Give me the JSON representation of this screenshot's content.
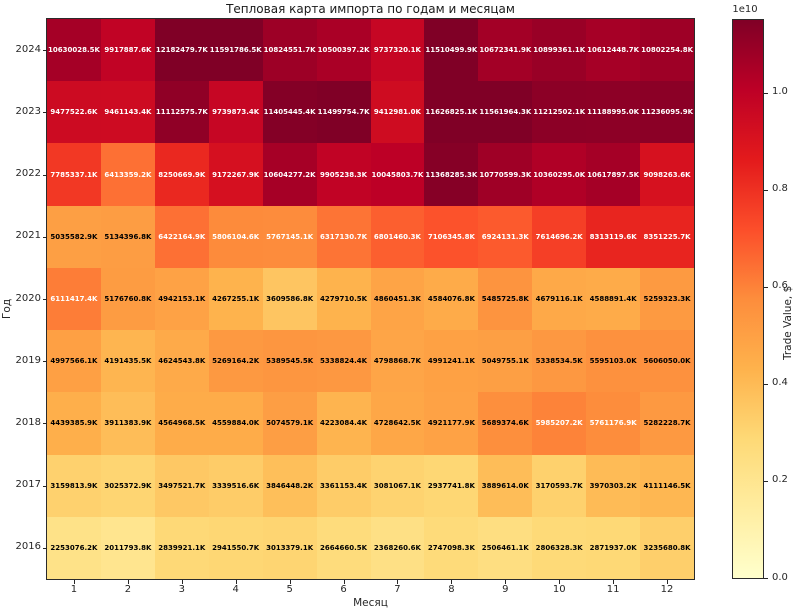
{
  "chart_data": {
    "type": "heatmap",
    "title": "Тепловая карта импорта по годам и месяцам",
    "xlabel": "Месяц",
    "ylabel": "Год",
    "columns": [
      "1",
      "2",
      "3",
      "4",
      "5",
      "6",
      "7",
      "8",
      "9",
      "10",
      "11",
      "12"
    ],
    "rows": [
      "2024",
      "2023",
      "2022",
      "2021",
      "2020",
      "2019",
      "2018",
      "2017",
      "2016"
    ],
    "values_unit": "K",
    "values": [
      [
        10630028.5,
        9917887.6,
        12182479.7,
        11591786.5,
        10824551.7,
        10500397.2,
        9737320.1,
        11510499.9,
        10672341.9,
        10899361.1,
        10612448.7,
        10802254.8
      ],
      [
        9477522.6,
        9461143.4,
        11112575.7,
        9739873.4,
        11405445.4,
        11499754.7,
        9412981.0,
        11626825.1,
        11561964.3,
        11212502.1,
        11188995.0,
        11236095.9
      ],
      [
        7785337.1,
        6413359.2,
        8250669.9,
        9172267.9,
        10604277.2,
        9905238.3,
        10045803.7,
        11368285.3,
        10770599.3,
        10360295.0,
        10617897.5,
        9098263.6
      ],
      [
        5035582.9,
        5134396.8,
        6422164.9,
        5806104.6,
        5767145.1,
        6317130.7,
        6801460.3,
        7106345.8,
        6924131.3,
        7614696.2,
        8313119.6,
        8351225.7
      ],
      [
        6111417.4,
        5176760.8,
        4942153.1,
        4267255.1,
        3609586.8,
        4279710.5,
        4860451.3,
        4584076.8,
        5485725.8,
        4679116.1,
        4588891.4,
        5259323.3
      ],
      [
        4997566.1,
        4191435.5,
        4624543.8,
        5269164.2,
        5389545.5,
        5338824.4,
        4798868.7,
        4991241.1,
        5049755.1,
        5338534.5,
        5595103.0,
        5606050.0
      ],
      [
        4439385.9,
        3911383.9,
        4564968.5,
        4559884.0,
        5074579.1,
        4223084.4,
        4728642.5,
        4921177.9,
        5689374.6,
        5985207.2,
        5761176.9,
        5282228.7
      ],
      [
        3159813.9,
        3025372.9,
        3497521.7,
        3339516.6,
        3846448.2,
        3361153.4,
        3081067.1,
        2937741.8,
        3889614.0,
        3170593.7,
        3970303.2,
        4111146.5
      ],
      [
        2253076.2,
        2011793.8,
        2839921.1,
        2941550.7,
        3013379.1,
        2664660.5,
        2368260.6,
        2747098.3,
        2506461.1,
        2806328.3,
        2871937.0,
        3235680.8
      ]
    ],
    "colormap": {
      "name": "YlOrRd",
      "anchors": [
        "#ffffcc",
        "#ffeda0",
        "#fed976",
        "#feb24c",
        "#fd8d3c",
        "#fc4e2a",
        "#e31a1c",
        "#bd0026",
        "#800026"
      ]
    },
    "vmin": 0,
    "vmax": 11500000,
    "annotation_text_threshold": 0.498,
    "annotation_colors": {
      "light": "#ffffff",
      "dark": "#000000"
    },
    "colorbar": {
      "label": "Trade Value, $",
      "offset_text": "1e10",
      "ticks": [
        "0.0",
        "0.2",
        "0.4",
        "0.6",
        "0.8",
        "1.0"
      ],
      "tick_values_k": [
        0,
        2000000,
        4000000,
        6000000,
        8000000,
        10000000
      ]
    }
  }
}
